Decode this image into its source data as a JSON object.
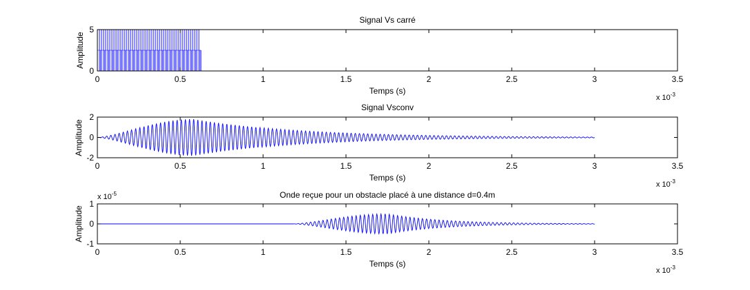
{
  "chart_data": [
    {
      "type": "line",
      "title": "Signal Vs carré",
      "xlabel": "Temps (s)",
      "ylabel": "Amplitude",
      "x_exponent": "x 10",
      "x_exponent_power": "-3",
      "y_exponent": "",
      "y_exponent_power": "",
      "xlim": [
        0,
        3.5
      ],
      "ylim": [
        0,
        5
      ],
      "xticks": [
        0,
        0.5,
        1,
        1.5,
        2,
        2.5,
        3,
        3.5
      ],
      "xtick_labels": [
        "0",
        "0.5",
        "1",
        "1.5",
        "2",
        "2.5",
        "3",
        "3.5"
      ],
      "yticks": [
        0,
        5
      ],
      "ytick_labels": [
        "0",
        "5"
      ],
      "series": [
        {
          "signal": "square_burst",
          "color": "#0000ff",
          "high": 5,
          "low": 0,
          "frequency_khz": 40,
          "burst_end_ms": 0.625,
          "mid_level": 2.5
        }
      ]
    },
    {
      "type": "line",
      "title": "Signal Vsconv",
      "xlabel": "Temps (s)",
      "ylabel": "Amplitude",
      "x_exponent": "x 10",
      "x_exponent_power": "-3",
      "y_exponent": "",
      "y_exponent_power": "",
      "xlim": [
        0,
        3.5
      ],
      "ylim": [
        -2,
        2
      ],
      "xticks": [
        0,
        0.5,
        1,
        1.5,
        2,
        2.5,
        3,
        3.5
      ],
      "xtick_labels": [
        "0",
        "0.5",
        "1",
        "1.5",
        "2",
        "2.5",
        "3",
        "3.5"
      ],
      "yticks": [
        -2,
        0,
        2
      ],
      "ytick_labels": [
        "-2",
        "0",
        "2"
      ],
      "series": [
        {
          "signal": "modulated_burst",
          "color": "#0000ff",
          "frequency_khz": 40,
          "start_ms": 0,
          "end_ms": 3.0,
          "peak_amplitude": 1.8,
          "peak_time_ms": 0.58
        }
      ]
    },
    {
      "type": "line",
      "title": "Onde reçue pour un obstacle placé à une distance d=0.4m",
      "xlabel": "Temps (s)",
      "ylabel": "Amplitude",
      "x_exponent": "x 10",
      "x_exponent_power": "-3",
      "y_exponent": "x 10",
      "y_exponent_power": "-5",
      "xlim": [
        0,
        3.5
      ],
      "ylim": [
        -1,
        1
      ],
      "xticks": [
        0,
        0.5,
        1,
        1.5,
        2,
        2.5,
        3,
        3.5
      ],
      "xtick_labels": [
        "0",
        "0.5",
        "1",
        "1.5",
        "2",
        "2.5",
        "3",
        "3.5"
      ],
      "yticks": [
        -1,
        0,
        1
      ],
      "ytick_labels": [
        "-1",
        "0",
        "1"
      ],
      "series": [
        {
          "signal": "modulated_burst",
          "color": "#0000ff",
          "frequency_khz": 40,
          "start_ms": 1.18,
          "end_ms": 3.0,
          "peak_amplitude": 0.5,
          "peak_time_ms": 1.75
        }
      ]
    }
  ]
}
